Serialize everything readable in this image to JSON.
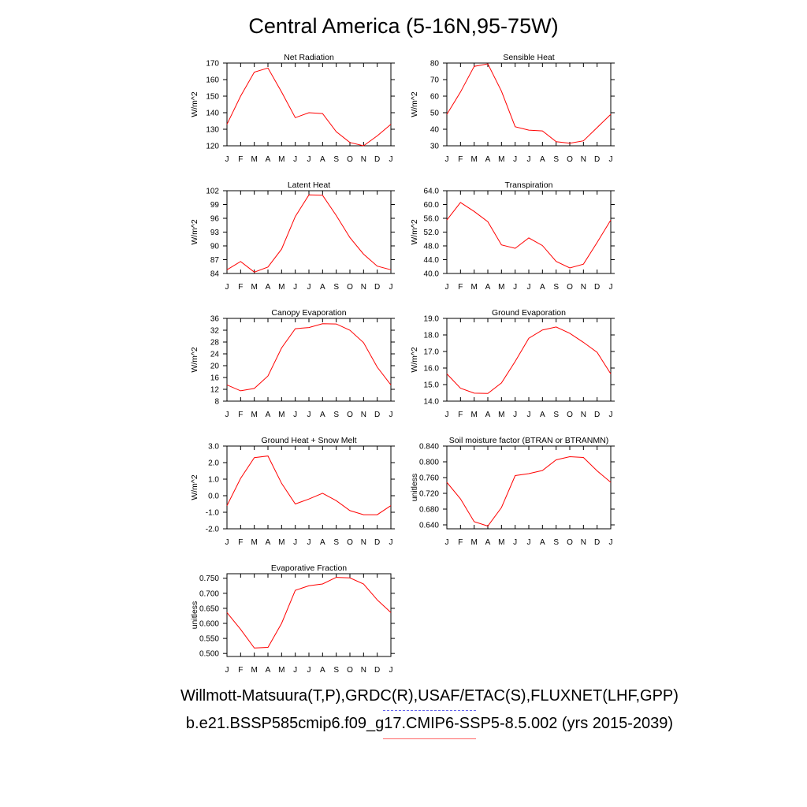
{
  "title": "Central America (5-16N,95-75W)",
  "legend": {
    "obs_label": "Willmott-Matsuura(T,P),GRDC(R),USAF/ETAC(S),FLUXNET(LHF,GPP)",
    "model_label": "b.e21.BSSP585cmip6.f09_g17.CMIP6-SSP5-8.5.002 (yrs 2015-2039)",
    "obs_color": "#6666ee",
    "model_color": "#ff0000"
  },
  "chart_data": [
    {
      "type": "line",
      "title": "Net Radiation",
      "ylabel": "W/m^2",
      "categories": [
        "J",
        "F",
        "M",
        "A",
        "M",
        "J",
        "J",
        "A",
        "S",
        "O",
        "N",
        "D",
        "J"
      ],
      "ylim": [
        120,
        170
      ],
      "yticks": [
        "120",
        "130",
        "140",
        "150",
        "160",
        "170"
      ],
      "series": [
        {
          "color": "#ff0000",
          "values": [
            133,
            150,
            164.5,
            167,
            152.5,
            137,
            140,
            139.5,
            128.5,
            122,
            120,
            126,
            133
          ]
        }
      ]
    },
    {
      "type": "line",
      "title": "Sensible Heat",
      "ylabel": "W/m^2",
      "categories": [
        "J",
        "F",
        "M",
        "A",
        "M",
        "J",
        "J",
        "A",
        "S",
        "O",
        "N",
        "D",
        "J"
      ],
      "ylim": [
        30,
        80
      ],
      "yticks": [
        "30",
        "40",
        "50",
        "60",
        "70",
        "80"
      ],
      "series": [
        {
          "color": "#ff0000",
          "values": [
            49,
            62.5,
            78,
            79.5,
            63,
            41.5,
            39.5,
            39,
            32.5,
            31.5,
            33,
            41,
            49
          ]
        }
      ]
    },
    {
      "type": "line",
      "title": "Latent Heat",
      "ylabel": "W/m^2",
      "categories": [
        "J",
        "F",
        "M",
        "A",
        "M",
        "J",
        "J",
        "A",
        "S",
        "O",
        "N",
        "D",
        "J"
      ],
      "ylim": [
        84,
        102
      ],
      "yticks": [
        "84",
        "87",
        "90",
        "93",
        "96",
        "99",
        "102"
      ],
      "series": [
        {
          "color": "#ff0000",
          "values": [
            84.8,
            86.6,
            84.3,
            85.4,
            89.3,
            96.4,
            101.1,
            101,
            96.6,
            91.8,
            88.2,
            85.6,
            84.8
          ]
        }
      ]
    },
    {
      "type": "line",
      "title": "Transpiration",
      "ylabel": "W/m^2",
      "categories": [
        "J",
        "F",
        "M",
        "A",
        "M",
        "J",
        "J",
        "A",
        "S",
        "O",
        "N",
        "D",
        "J"
      ],
      "ylim": [
        40,
        64
      ],
      "yticks": [
        "40.0",
        "44.0",
        "48.0",
        "52.0",
        "56.0",
        "60.0",
        "64.0"
      ],
      "series": [
        {
          "color": "#ff0000",
          "values": [
            55.5,
            60.6,
            58,
            55,
            48.3,
            47.3,
            50.3,
            48.1,
            43.5,
            41.6,
            42.7,
            49,
            55.5
          ]
        }
      ]
    },
    {
      "type": "line",
      "title": "Canopy Evaporation",
      "ylabel": "W/m^2",
      "categories": [
        "J",
        "F",
        "M",
        "A",
        "M",
        "J",
        "J",
        "A",
        "S",
        "O",
        "N",
        "D",
        "J"
      ],
      "ylim": [
        8,
        36
      ],
      "yticks": [
        "8",
        "12",
        "16",
        "20",
        "24",
        "28",
        "32",
        "36"
      ],
      "series": [
        {
          "color": "#ff0000",
          "values": [
            13.5,
            11.5,
            12.3,
            16.5,
            26,
            32.5,
            32.9,
            34.2,
            34.1,
            32,
            27.8,
            19.5,
            13.5
          ]
        }
      ]
    },
    {
      "type": "line",
      "title": "Ground Evaporation",
      "ylabel": "W/m^2",
      "categories": [
        "J",
        "F",
        "M",
        "A",
        "M",
        "J",
        "J",
        "A",
        "S",
        "O",
        "N",
        "D",
        "J"
      ],
      "ylim": [
        14,
        19
      ],
      "yticks": [
        "14.0",
        "15.0",
        "16.0",
        "17.0",
        "18.0",
        "19.0"
      ],
      "series": [
        {
          "color": "#ff0000",
          "values": [
            15.65,
            14.78,
            14.48,
            14.46,
            15.1,
            16.4,
            17.8,
            18.3,
            18.48,
            18.1,
            17.55,
            16.95,
            15.65
          ]
        }
      ]
    },
    {
      "type": "line",
      "title": "Ground Heat + Snow Melt",
      "ylabel": "W/m^2",
      "categories": [
        "J",
        "F",
        "M",
        "A",
        "M",
        "J",
        "J",
        "A",
        "S",
        "O",
        "N",
        "D",
        "J"
      ],
      "ylim": [
        -2,
        3
      ],
      "yticks": [
        "-2.0",
        "-1.0",
        "0.0",
        "1.0",
        "2.0",
        "3.0"
      ],
      "series": [
        {
          "color": "#ff0000",
          "values": [
            -0.6,
            1.05,
            2.3,
            2.4,
            0.75,
            -0.5,
            -0.2,
            0.15,
            -0.3,
            -0.9,
            -1.15,
            -1.15,
            -0.6
          ]
        }
      ]
    },
    {
      "type": "line",
      "title": "Soil moisture factor (BTRAN or BTRANMN)",
      "ylabel": "unitless",
      "categories": [
        "J",
        "F",
        "M",
        "A",
        "M",
        "J",
        "J",
        "A",
        "S",
        "O",
        "N",
        "D",
        "J"
      ],
      "ylim": [
        0.63,
        0.84
      ],
      "yticks": [
        "0.640",
        "0.680",
        "0.720",
        "0.760",
        "0.800",
        "0.840"
      ],
      "series": [
        {
          "color": "#ff0000",
          "values": [
            0.748,
            0.706,
            0.648,
            0.637,
            0.684,
            0.765,
            0.77,
            0.778,
            0.805,
            0.813,
            0.811,
            0.777,
            0.748
          ]
        }
      ]
    },
    {
      "type": "line",
      "title": "Evaporative Fraction",
      "ylabel": "unitless",
      "categories": [
        "J",
        "F",
        "M",
        "A",
        "M",
        "J",
        "J",
        "A",
        "S",
        "O",
        "N",
        "D",
        "J"
      ],
      "ylim": [
        0.49,
        0.765
      ],
      "yticks": [
        "0.500",
        "0.550",
        "0.600",
        "0.650",
        "0.700",
        "0.750"
      ],
      "series": [
        {
          "color": "#ff0000",
          "values": [
            0.636,
            0.58,
            0.518,
            0.52,
            0.6,
            0.71,
            0.725,
            0.731,
            0.753,
            0.751,
            0.731,
            0.678,
            0.636
          ]
        }
      ]
    }
  ]
}
